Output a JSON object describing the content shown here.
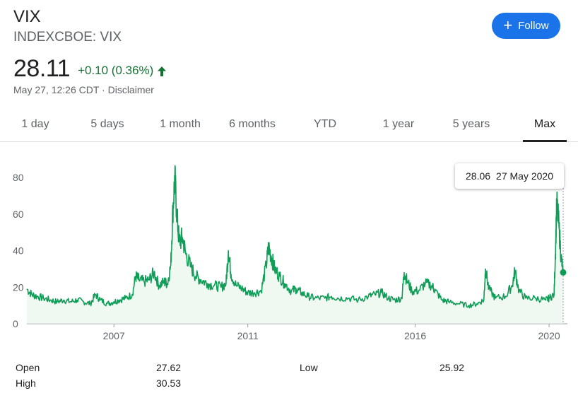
{
  "header": {
    "ticker": "VIX",
    "exchange": "INDEXCBOE: VIX",
    "price": "28.11",
    "change": "+0.10 (0.36%)",
    "timestamp": "May 27, 12:26 CDT",
    "separator": "·",
    "disclaimer": "Disclaimer",
    "change_color": "#137333",
    "arrow_icon": "arrow-up-icon"
  },
  "follow_button": {
    "label": "Follow",
    "icon": "plus-icon",
    "color": "#1a73e8"
  },
  "tabs": [
    {
      "label": "1 day"
    },
    {
      "label": "5 days"
    },
    {
      "label": "1 month"
    },
    {
      "label": "6 months"
    },
    {
      "label": "YTD"
    },
    {
      "label": "1 year"
    },
    {
      "label": "5 years"
    },
    {
      "label": "Max",
      "selected": true
    }
  ],
  "tooltip": {
    "value": "28.06",
    "date": "27 May 2020"
  },
  "stats": {
    "open_label": "Open",
    "open": "27.62",
    "high_label": "High",
    "high": "30.53",
    "low_label": "Low",
    "low": "25.92"
  },
  "chart_data": {
    "type": "area",
    "line_color": "#0f9d58",
    "ylim": [
      0,
      85
    ],
    "y_ticks": [
      0,
      20,
      40,
      60,
      80
    ],
    "x_ticks": [
      "2007",
      "2011",
      "2016",
      "2020"
    ],
    "xlim": [
      2004.4,
      2020.42
    ],
    "grid": false,
    "series": [
      {
        "x": [
          2004.4,
          2004.55,
          2004.7,
          2004.9,
          2005.1,
          2005.3,
          2005.5,
          2005.7,
          2005.9,
          2006.1,
          2006.3,
          2006.45,
          2006.6,
          2006.8,
          2007.0,
          2007.15,
          2007.35,
          2007.55,
          2007.65,
          2007.75,
          2007.9,
          2008.05,
          2008.2,
          2008.35,
          2008.5,
          2008.6,
          2008.7,
          2008.76,
          2008.82,
          2008.88,
          2008.95,
          2009.05,
          2009.15,
          2009.3,
          2009.45,
          2009.6,
          2009.8,
          2010.0,
          2010.2,
          2010.35,
          2010.42,
          2010.5,
          2010.65,
          2010.85,
          2011.0,
          2011.2,
          2011.4,
          2011.55,
          2011.62,
          2011.7,
          2011.8,
          2011.95,
          2012.1,
          2012.3,
          2012.45,
          2012.6,
          2012.8,
          2013.0,
          2013.3,
          2013.5,
          2013.7,
          2014.0,
          2014.3,
          2014.6,
          2014.8,
          2015.0,
          2015.2,
          2015.4,
          2015.6,
          2015.67,
          2015.75,
          2015.9,
          2016.1,
          2016.3,
          2016.5,
          2016.6,
          2016.8,
          2017.0,
          2017.3,
          2017.6,
          2017.85,
          2018.05,
          2018.1,
          2018.2,
          2018.4,
          2018.7,
          2018.9,
          2018.98,
          2019.1,
          2019.3,
          2019.6,
          2019.9,
          2020.0,
          2020.15,
          2020.2,
          2020.23,
          2020.3,
          2020.36,
          2020.42
        ],
        "y": [
          19,
          16,
          15,
          14,
          13,
          12,
          13,
          12,
          13,
          12,
          11,
          16,
          13,
          11,
          12,
          13,
          14,
          16,
          26,
          24,
          23,
          24,
          28,
          21,
          23,
          22,
          32,
          62,
          80,
          60,
          45,
          47,
          38,
          31,
          26,
          24,
          22,
          21,
          20,
          22,
          40,
          27,
          21,
          19,
          17,
          17,
          18,
          32,
          42,
          37,
          30,
          26,
          22,
          18,
          19,
          17,
          15,
          14,
          14,
          15,
          14,
          14,
          13,
          15,
          16,
          17,
          14,
          13,
          14,
          28,
          24,
          18,
          18,
          22,
          21,
          18,
          13,
          12,
          11,
          10,
          11,
          13,
          30,
          19,
          14,
          15,
          21,
          29,
          18,
          14,
          14,
          13,
          14,
          16,
          47,
          66,
          52,
          36,
          28.06
        ]
      }
    ]
  }
}
